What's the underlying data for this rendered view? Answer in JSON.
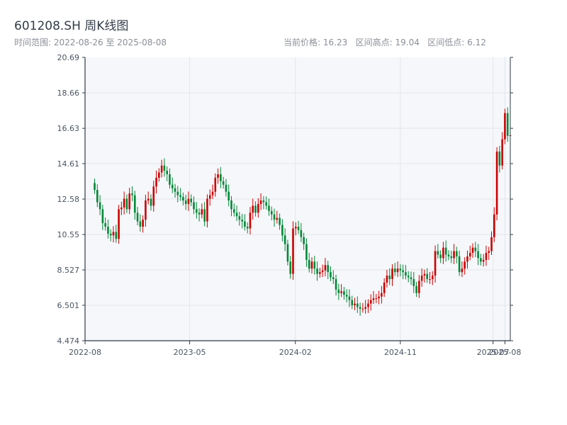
{
  "header": {
    "title": "601208.SH 周K线图",
    "range_text": "时间范围: 2022-08-26 至 2025-08-08",
    "stats_text": "当前价格: 16.23   区间高点: 19.04   区间低点: 6.12"
  },
  "chart_data": {
    "type": "candlestick",
    "title": "601208.SH 周K线图",
    "ylim": [
      4.474,
      20.69
    ],
    "y_ticks": [
      "4.474",
      "6.501",
      "8.527",
      "10.55",
      "12.58",
      "14.61",
      "16.63",
      "18.66",
      "20.69"
    ],
    "x_ticks": [
      {
        "label": "2022-08",
        "date": "2022-08-01"
      },
      {
        "label": "2023-05",
        "date": "2023-05-01"
      },
      {
        "label": "2024-02",
        "date": "2024-02-01"
      },
      {
        "label": "2024-11",
        "date": "2024-11-01"
      },
      {
        "label": "2025-07",
        "date": "2025-07-01"
      },
      {
        "label": "2025-08",
        "date": "2025-08-01"
      }
    ],
    "x_range": [
      "2022-08-01",
      "2025-08-15"
    ],
    "grid": true,
    "colors": {
      "up": "#cc0000",
      "down": "#008837",
      "background": "#f6f7fa",
      "grid": "#e3e6eb",
      "axis": "#2f3b4a"
    },
    "week_start": "2022-08-26",
    "closes": [
      13.1,
      12.4,
      12.0,
      11.2,
      11.0,
      10.6,
      10.5,
      10.7,
      10.3,
      12.0,
      12.1,
      12.6,
      12.0,
      12.9,
      12.8,
      11.8,
      11.3,
      11.0,
      11.4,
      12.5,
      12.6,
      12.2,
      13.3,
      13.8,
      14.1,
      14.5,
      14.2,
      14.0,
      13.4,
      13.2,
      13.0,
      12.8,
      12.7,
      12.5,
      12.3,
      12.6,
      12.4,
      12.0,
      11.8,
      11.7,
      12.0,
      11.3,
      12.6,
      12.8,
      13.0,
      13.8,
      14.0,
      13.6,
      13.4,
      13.0,
      12.5,
      12.0,
      11.8,
      11.6,
      11.4,
      11.3,
      11.0,
      10.9,
      11.8,
      12.2,
      11.8,
      12.3,
      12.5,
      12.4,
      12.2,
      11.9,
      11.7,
      11.4,
      11.5,
      11.1,
      10.5,
      10.0,
      9.0,
      8.3,
      10.9,
      11.0,
      10.8,
      10.4,
      10.0,
      9.1,
      8.6,
      9.0,
      8.6,
      8.3,
      8.4,
      8.5,
      8.8,
      8.4,
      8.1,
      8.0,
      7.4,
      7.2,
      7.3,
      7.1,
      7.0,
      6.8,
      6.5,
      6.6,
      6.4,
      6.3,
      6.3,
      6.4,
      6.6,
      6.8,
      6.9,
      6.9,
      7.0,
      7.2,
      7.8,
      8.2,
      8.0,
      8.6,
      8.4,
      8.6,
      8.5,
      8.4,
      8.2,
      8.1,
      8.0,
      7.6,
      7.2,
      7.9,
      8.2,
      8.3,
      8.0,
      8.0,
      8.2,
      9.6,
      9.4,
      9.2,
      9.8,
      9.4,
      9.3,
      9.2,
      9.6,
      9.3,
      8.4,
      8.6,
      9.0,
      9.3,
      9.5,
      9.8,
      9.6,
      9.2,
      9.0,
      9.1,
      9.5,
      9.6,
      10.4,
      11.7,
      15.3,
      14.5,
      16.0,
      17.5,
      16.2,
      16.23
    ],
    "ohlc_notes": "weekly candles; opens equal the previous week's close"
  }
}
